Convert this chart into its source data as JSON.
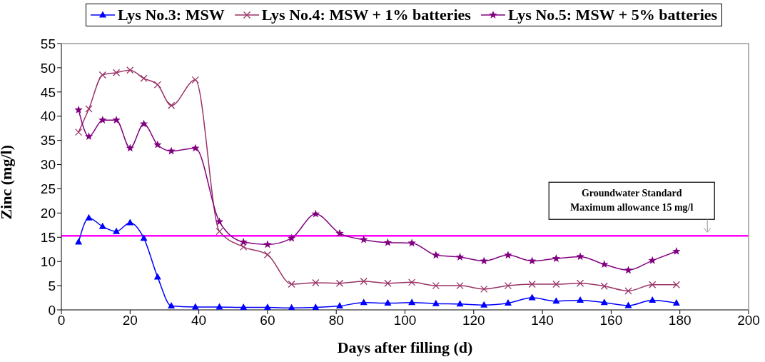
{
  "chart_data": {
    "type": "line",
    "xlabel": "Days after filling (d)",
    "ylabel": "Zinc (mg/l)",
    "x": [
      5,
      8,
      12,
      16,
      20,
      24,
      28,
      32,
      39,
      46,
      53,
      60,
      67,
      74,
      81,
      88,
      95,
      102,
      109,
      116,
      123,
      130,
      137,
      144,
      151,
      158,
      165,
      172,
      179
    ],
    "series": [
      {
        "name": "Lys No.3: MSW",
        "color": "#0000ff",
        "marker": "triangle",
        "values": [
          14,
          19,
          17.2,
          16.2,
          18,
          14.8,
          6.8,
          0.8,
          0.6,
          0.6,
          0.5,
          0.5,
          0.4,
          0.5,
          0.8,
          1.5,
          1.4,
          1.5,
          1.3,
          1.2,
          1.0,
          1.4,
          2.5,
          1.8,
          2.0,
          1.5,
          0.9,
          2.0,
          1.4
        ]
      },
      {
        "name": "Lys No.4: MSW + 1% batteries",
        "color": "#993366",
        "marker": "cross",
        "values": [
          36.7,
          41.5,
          48.5,
          49,
          49.5,
          47.8,
          46.5,
          42.2,
          47.5,
          16.2,
          13,
          11.4,
          5.3,
          5.6,
          5.5,
          5.9,
          5.5,
          5.7,
          5.0,
          5.0,
          4.3,
          5.0,
          5.3,
          5.3,
          5.5,
          4.9,
          3.9,
          5.2,
          5.2
        ]
      },
      {
        "name": "Lys No.5: MSW + 5% batteries",
        "color": "#800080",
        "marker": "star",
        "values": [
          41.3,
          35.8,
          39.2,
          39.2,
          33.4,
          38.4,
          34.1,
          32.8,
          33.4,
          18.2,
          14.0,
          13.5,
          14.8,
          19.8,
          15.8,
          14.5,
          13.9,
          13.8,
          11.3,
          10.9,
          10.1,
          11.3,
          10.1,
          10.6,
          11.0,
          9.4,
          8.2,
          10.2,
          12.1
        ]
      }
    ],
    "xlim": [
      0,
      200
    ],
    "xticks": [
      0,
      20,
      40,
      60,
      80,
      100,
      120,
      140,
      160,
      180,
      200
    ],
    "ylim": [
      0,
      55
    ],
    "yticks": [
      0,
      5,
      10,
      15,
      20,
      25,
      30,
      35,
      40,
      45,
      50,
      55
    ],
    "ref_lines": [
      {
        "axis": "y",
        "value": 15.3,
        "color": "#ff00ff"
      }
    ],
    "annotations": [
      {
        "text": "Groundwater Standard\nMaximum allowance 15 mg/l",
        "x": 188,
        "y": 15.3
      }
    ],
    "grid": false,
    "legend": "top",
    "line_style": "solid"
  }
}
